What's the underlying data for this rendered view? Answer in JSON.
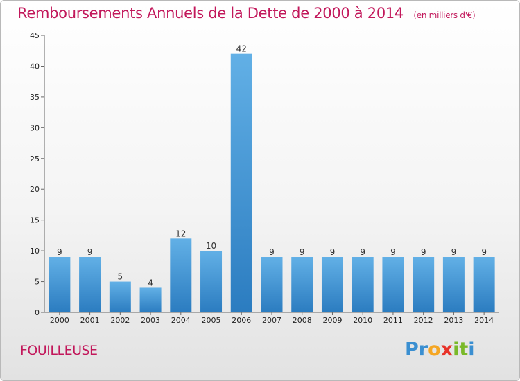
{
  "header": {
    "title": "Remboursements Annuels de la Dette de 2000 à 2014",
    "subtitle": "(en milliers d'€)"
  },
  "footer": {
    "commune": "FOUILLEUSE",
    "logo_text": "Proxiti",
    "logo_letters": [
      "P",
      "r",
      "o",
      "x",
      "i",
      "t",
      "i"
    ],
    "logo_colors": [
      "#3a8fd1",
      "#3a8fd1",
      "#f5a623",
      "#e8332a",
      "#7ab929",
      "#7ab929",
      "#3a8fd1"
    ]
  },
  "colors": {
    "title": "#c2185b",
    "bar_top": "#62b0e6",
    "bar_bottom": "#2b7cc0"
  },
  "chart_data": {
    "type": "bar",
    "title": "Remboursements Annuels de la Dette de 2000 à 2014",
    "subtitle": "(en milliers d'€)",
    "categories": [
      "2000",
      "2001",
      "2002",
      "2003",
      "2004",
      "2005",
      "2006",
      "2007",
      "2008",
      "2009",
      "2010",
      "2011",
      "2012",
      "2013",
      "2014"
    ],
    "values": [
      9,
      9,
      5,
      4,
      12,
      10,
      42,
      9,
      9,
      9,
      9,
      9,
      9,
      9,
      9
    ],
    "ylim": [
      0,
      45
    ],
    "yticks": [
      0,
      5,
      10,
      15,
      20,
      25,
      30,
      35,
      40,
      45
    ],
    "grid": false,
    "xlabel": "",
    "ylabel": ""
  }
}
